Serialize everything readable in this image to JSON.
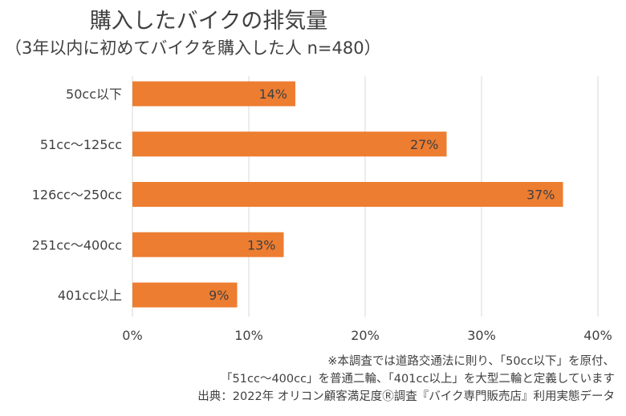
{
  "chart_data": {
    "type": "bar",
    "orientation": "horizontal",
    "title": "購入したバイクの排気量",
    "subtitle": "（3年以内に初めてバイクを購入した人 n=480）",
    "categories": [
      "50cc以下",
      "51cc～125cc",
      "126cc～250cc",
      "251cc～400cc",
      "401cc以上"
    ],
    "values": [
      14,
      27,
      37,
      13,
      9
    ],
    "data_labels": [
      "14%",
      "27%",
      "37%",
      "13%",
      "9%"
    ],
    "xlim": [
      0,
      40
    ],
    "x_ticks": [
      "0%",
      "10%",
      "20%",
      "30%",
      "40%"
    ],
    "grid": true,
    "bar_color": "#ED7D31",
    "xlabel": "",
    "ylabel": ""
  },
  "notes": [
    "※本調査では道路交通法に則り、「50cc以下」を原付、",
    "「51cc～400cc」を普通二輪、「401cc以上」を大型二輪と定義しています",
    "出典：2022年 オリコン顧客満足度Ⓡ調査『バイク専門販売店』利用実態データ"
  ]
}
